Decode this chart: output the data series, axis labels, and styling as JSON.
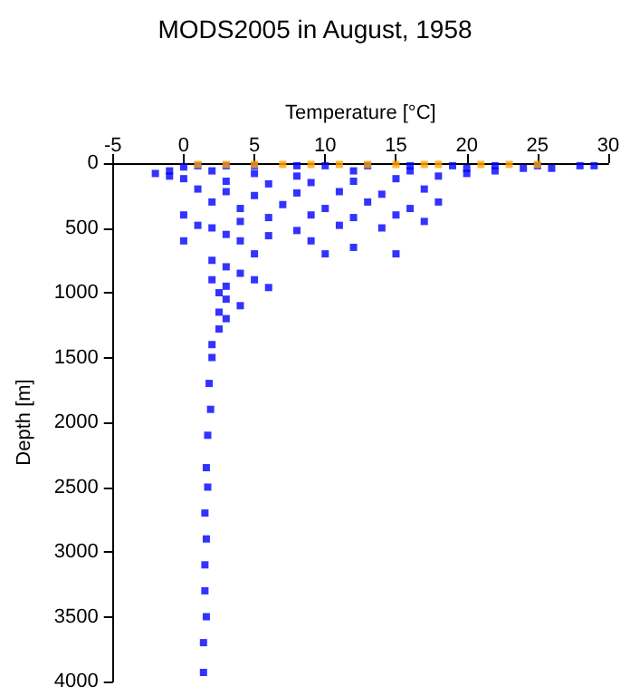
{
  "chart_data": {
    "type": "scatter",
    "title": "MODS2005 in August, 1958",
    "xlabel": "Temperature [°C]",
    "ylabel": "Depth [m]",
    "xlim": [
      -5,
      30
    ],
    "xticks": [
      -5,
      0,
      5,
      10,
      15,
      20,
      25,
      30
    ],
    "ylim": [
      4000,
      0
    ],
    "yticks": [
      0,
      500,
      1000,
      1500,
      2000,
      2500,
      3000,
      3500,
      4000
    ],
    "grid": false,
    "marker": "square",
    "series": [
      {
        "color": "#0000ff",
        "x": [
          -2,
          -1,
          0,
          1,
          3,
          5,
          8,
          10,
          13,
          16,
          19,
          22,
          25,
          28,
          29,
          26,
          22,
          20,
          18,
          15,
          12,
          9,
          6,
          3,
          0,
          -1,
          2,
          5,
          8,
          12,
          16,
          20,
          24,
          1,
          3,
          5,
          8,
          11,
          14,
          17,
          18,
          16,
          13,
          10,
          7,
          4,
          2,
          0,
          1,
          0,
          2,
          4,
          6,
          9,
          12,
          15,
          17,
          14,
          11,
          8,
          6,
          4,
          3,
          9,
          12,
          15,
          10,
          5,
          2,
          3,
          4,
          2,
          3,
          5,
          6,
          2.5,
          3,
          4,
          2.5,
          3,
          2.5,
          2,
          2,
          1.8,
          1.9,
          1.7,
          1.6,
          1.7,
          1.5,
          1.6,
          1.5,
          1.5,
          1.6,
          1.4,
          1.4
        ],
        "values": [
          80,
          60,
          30,
          20,
          20,
          20,
          20,
          20,
          20,
          20,
          20,
          20,
          20,
          20,
          20,
          40,
          60,
          80,
          100,
          120,
          140,
          150,
          160,
          140,
          120,
          100,
          60,
          80,
          100,
          60,
          60,
          40,
          40,
          200,
          220,
          250,
          230,
          220,
          240,
          200,
          300,
          350,
          300,
          350,
          320,
          350,
          300,
          400,
          480,
          600,
          500,
          450,
          420,
          400,
          420,
          400,
          450,
          500,
          480,
          520,
          560,
          600,
          550,
          600,
          650,
          700,
          700,
          700,
          750,
          800,
          850,
          900,
          950,
          900,
          960,
          1000,
          1050,
          1100,
          1150,
          1200,
          1280,
          1400,
          1500,
          1700,
          1900,
          2100,
          2350,
          2500,
          2700,
          2900,
          3100,
          3300,
          3500,
          3700,
          3930
        ]
      },
      {
        "color": "#ffa500",
        "x": [
          1,
          3,
          5,
          7,
          9,
          11,
          13,
          15,
          17,
          18,
          21,
          23,
          25
        ],
        "values": [
          10,
          10,
          10,
          10,
          10,
          10,
          10,
          10,
          10,
          10,
          10,
          10,
          10
        ]
      }
    ]
  }
}
